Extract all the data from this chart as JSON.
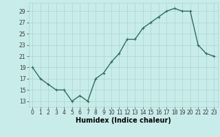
{
  "x": [
    0,
    1,
    2,
    3,
    4,
    5,
    6,
    7,
    8,
    9,
    10,
    11,
    12,
    13,
    14,
    15,
    16,
    17,
    18,
    19,
    20,
    21,
    22,
    23
  ],
  "y": [
    19,
    17,
    16,
    15,
    15,
    13,
    14,
    13,
    17,
    18,
    20,
    21.5,
    24,
    24,
    26,
    27,
    28,
    29,
    29.5,
    29,
    29,
    23,
    21.5,
    21
  ],
  "line_color": "#2e6b5e",
  "marker": "+",
  "marker_size": 3,
  "bg_color": "#c8ecea",
  "grid_color": "#aad4d0",
  "xlabel": "Humidex (Indice chaleur)",
  "xlim": [
    -0.5,
    23.5
  ],
  "ylim": [
    12,
    30.5
  ],
  "yticks": [
    13,
    15,
    17,
    19,
    21,
    23,
    25,
    27,
    29
  ],
  "xticks": [
    0,
    1,
    2,
    3,
    4,
    5,
    6,
    7,
    8,
    9,
    10,
    11,
    12,
    13,
    14,
    15,
    16,
    17,
    18,
    19,
    20,
    21,
    22,
    23
  ],
  "tick_fontsize": 5.5,
  "xlabel_fontsize": 7,
  "line_width": 1.0
}
